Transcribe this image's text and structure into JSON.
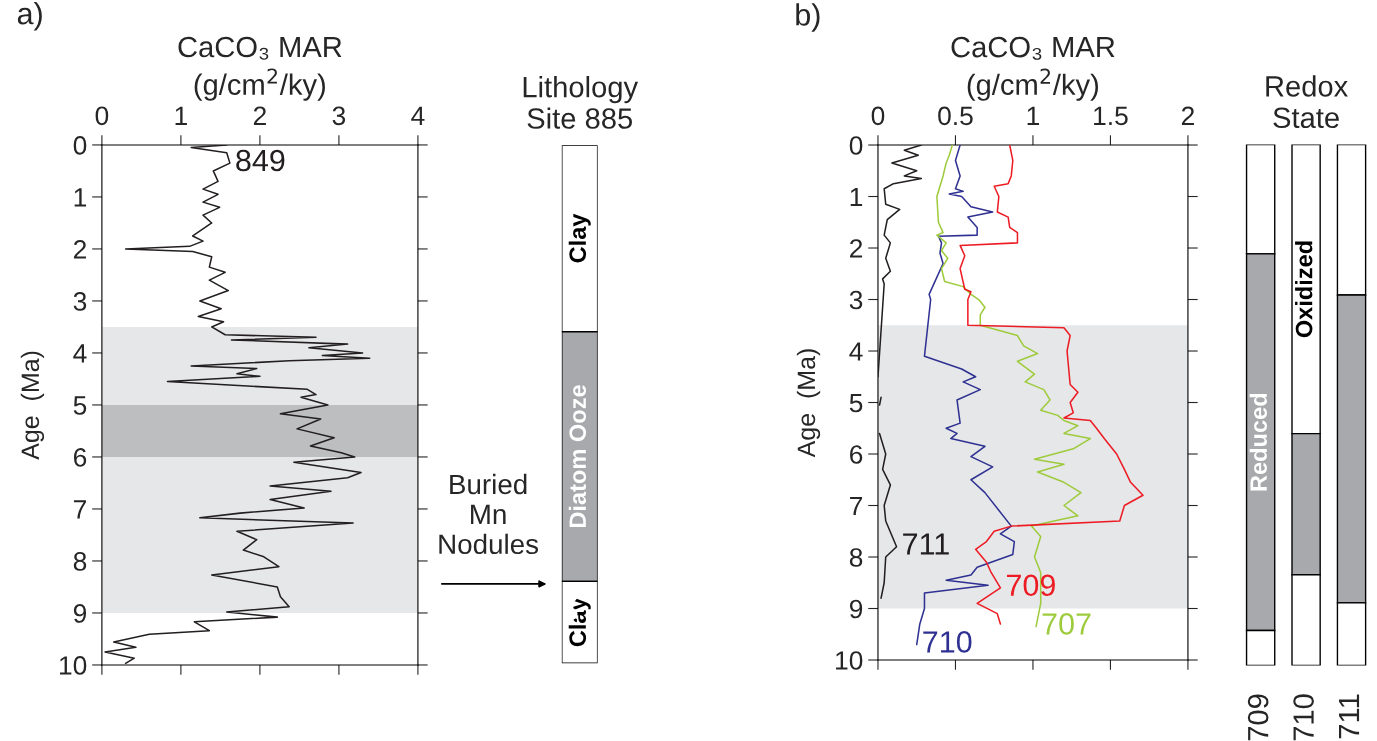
{
  "chart_data": [
    {
      "type": "line",
      "orientation": "horizontal",
      "title": "CaCO₃ MAR\n(g/cm$^{2}$/ky)",
      "ylabel": "Age  (Ma)",
      "annotations": [
        "a)"
      ],
      "xlim": [
        0,
        4
      ],
      "xticks": [
        0,
        1,
        2,
        3,
        4
      ],
      "ylim": [
        10,
        0
      ],
      "yticks": [
        0,
        1,
        2,
        3,
        4,
        5,
        6,
        7,
        8,
        9,
        10
      ],
      "bands": [
        {
          "axis": "y",
          "from": 3.5,
          "to": 9,
          "color": "#e6e7e8"
        },
        {
          "axis": "y",
          "from": 5,
          "to": 6,
          "color": "#bcbec0"
        }
      ],
      "series": [
        {
          "name": "849",
          "color": "#231f20",
          "x": [
            0,
            0.05,
            0.15,
            0.35,
            0.5,
            0.7,
            0.85,
            0.95,
            1.1,
            1.2,
            1.35,
            1.5,
            1.75,
            1.85,
            1.95,
            2.0,
            2.05,
            2.15,
            2.35,
            2.45,
            2.6,
            2.8,
            3.0,
            3.15,
            3.3,
            3.4,
            3.5,
            3.65,
            3.7,
            3.75,
            3.83,
            3.9,
            4.0,
            4.05,
            4.1,
            4.15,
            4.25,
            4.3,
            4.4,
            4.45,
            4.55,
            4.7,
            4.8,
            4.85,
            5.0,
            5.17,
            5.27,
            5.46,
            5.63,
            5.79,
            5.92,
            6.0,
            6.1,
            6.3,
            6.4,
            6.56,
            6.66,
            6.82,
            6.98,
            7.08,
            7.17,
            7.27,
            7.43,
            7.59,
            7.79,
            7.92,
            8.11,
            8.27,
            8.5,
            8.69,
            8.88,
            8.98,
            9.08,
            9.17,
            9.34,
            9.41,
            9.56,
            9.66,
            9.75,
            9.87,
            9.97
          ],
          "values": [
            1.58,
            1.13,
            1.58,
            1.62,
            1.41,
            1.47,
            1.28,
            1.47,
            1.28,
            1.49,
            1.28,
            1.39,
            1.15,
            1.28,
            1.11,
            0.3,
            1.15,
            1.39,
            1.36,
            1.56,
            1.36,
            1.6,
            1.24,
            1.51,
            1.22,
            1.54,
            1.39,
            1.56,
            2.71,
            1.64,
            3.11,
            2.62,
            3.3,
            2.79,
            3.39,
            2.37,
            1.13,
            1.96,
            1.71,
            2.0,
            0.83,
            2.6,
            2.71,
            2.52,
            2.86,
            2.26,
            2.77,
            2.47,
            2.94,
            2.64,
            3.03,
            3.2,
            2.43,
            3.28,
            3.11,
            2.13,
            2.9,
            2.13,
            2.56,
            1.75,
            1.24,
            3.18,
            1.71,
            1.96,
            1.79,
            2.05,
            2.24,
            1.39,
            2.22,
            2.26,
            2.37,
            1.58,
            2.22,
            1.17,
            1.36,
            0.6,
            0.15,
            0.43,
            0.04,
            0.41,
            0.3
          ]
        }
      ]
    },
    {
      "type": "bar",
      "stacked": true,
      "title": "Lithology\nSite 885",
      "categories": [
        null
      ],
      "ylim": [
        10,
        0
      ],
      "tick_labels": false,
      "annotations": [
        "Buried\nMn\nNodules"
      ],
      "series": [
        {
          "name": "Clay",
          "color": "#ffffff",
          "values": [
            3.6
          ]
        },
        {
          "name": "Diatom Ooze",
          "color": "#a7a9ac",
          "values": [
            4.82
          ]
        },
        {
          "name": "Clay",
          "color": "#ffffff",
          "values": [
            1.58
          ]
        }
      ]
    },
    {
      "type": "line",
      "orientation": "horizontal",
      "title": "CaCO₃ MAR\n(g/cm$^{2}$/ky)",
      "ylabel": "Age  (Ma)",
      "annotations": [
        "b)"
      ],
      "xlim": [
        0,
        2
      ],
      "xticks": [
        0,
        0.5,
        1,
        1.5,
        2
      ],
      "ylim": [
        10,
        0
      ],
      "yticks": [
        0,
        1,
        2,
        3,
        4,
        5,
        6,
        7,
        8,
        9,
        10
      ],
      "bands": [
        {
          "axis": "y",
          "from": 3.5,
          "to": 9,
          "color": "#e6e7e8"
        }
      ],
      "series": [
        {
          "name": "711",
          "color": "#231f20",
          "x": [
            0,
            0.1,
            0.2,
            0.35,
            0.5,
            0.6,
            0.65,
            0.75,
            0.85,
            1.15,
            1.25,
            1.45,
            1.75,
            1.9,
            2.2,
            2.45,
            2.6,
            2.7,
            4.5,
            4.7,
            4.9,
            5.05,
            5.3,
            5.6,
            6.0,
            6.3,
            6.6,
            7.0,
            7.3,
            7.8,
            8.0,
            8.5,
            8.8
          ],
          "values": [
            0.28,
            0.17,
            0.26,
            0.09,
            0.25,
            0.17,
            0.28,
            0.1,
            0.04,
            0.05,
            0.14,
            0.06,
            0.04,
            0.08,
            0.05,
            0.08,
            0.03,
            0.04,
            0.0,
            null,
            0.02,
            0.01,
            null,
            0.01,
            0.05,
            0.03,
            0.08,
            0.04,
            0.05,
            0.12,
            0.05,
            0.04,
            0.02
          ]
        },
        {
          "name": "710",
          "color": "#2e3192",
          "x": [
            0,
            0.3,
            0.6,
            0.85,
            0.9,
            0.95,
            1.0,
            1.2,
            1.3,
            1.4,
            1.6,
            1.75,
            1.77,
            1.9,
            2.1,
            2.3,
            2.7,
            2.9,
            3.0,
            4.1,
            4.35,
            4.5,
            4.6,
            4.75,
            4.95,
            5.4,
            5.5,
            5.6,
            5.7,
            5.85,
            6.05,
            6.25,
            6.5,
            6.75,
            7.4,
            7.55,
            7.7,
            7.95,
            8.2,
            8.35,
            8.45,
            8.55,
            8.7,
            9.0,
            9.3,
            9.7
          ],
          "values": [
            0.53,
            0.5,
            0.53,
            0.5,
            0.55,
            0.46,
            0.54,
            0.6,
            0.74,
            0.58,
            0.64,
            0.64,
            0.39,
            0.41,
            0.4,
            0.42,
            0.36,
            0.33,
            0.34,
            0.3,
            0.54,
            0.63,
            0.55,
            0.66,
            0.51,
            0.53,
            0.44,
            0.51,
            0.47,
            0.69,
            0.6,
            0.74,
            0.6,
            0.69,
            0.86,
            0.79,
            0.88,
            0.87,
            0.64,
            0.6,
            0.44,
            0.71,
            0.3,
            0.3,
            0.27,
            0.25
          ]
        },
        {
          "name": "707",
          "color": "#9ecb3c",
          "x": [
            0,
            0.2,
            0.35,
            0.6,
            1.0,
            1.5,
            1.7,
            1.75,
            1.9,
            2.05,
            2.2,
            2.4,
            2.65,
            2.75,
            2.9,
            3.0,
            3.15,
            3.3,
            3.5,
            3.7,
            3.9,
            4.05,
            4.2,
            4.45,
            4.6,
            4.75,
            4.95,
            5.15,
            5.25,
            5.35,
            5.45,
            5.6,
            5.7,
            5.9,
            6.1,
            6.2,
            6.35,
            6.55,
            6.75,
            7.0,
            7.2,
            7.4,
            7.6,
            8.0,
            8.3,
            8.9,
            9.35
          ],
          "values": [
            0.48,
            0.46,
            0.44,
            0.42,
            0.38,
            0.39,
            0.42,
            0.38,
            0.44,
            0.41,
            0.45,
            0.41,
            0.43,
            0.55,
            0.6,
            0.65,
            0.69,
            0.66,
            0.66,
            0.9,
            0.94,
            1.03,
            0.9,
            1.01,
            0.95,
            1.07,
            1.11,
            1.05,
            1.16,
            1.2,
            1.29,
            1.2,
            1.37,
            1.26,
            1.01,
            1.2,
            1.03,
            1.2,
            1.31,
            1.2,
            1.29,
            0.99,
            1.05,
            1.01,
            1.05,
            1.05,
            1.02
          ]
        },
        {
          "name": "709",
          "color": "#ed1c24",
          "x": [
            0,
            0.3,
            0.6,
            0.75,
            0.8,
            1.0,
            1.3,
            1.4,
            1.6,
            1.7,
            1.9,
            1.95,
            2.15,
            2.4,
            2.8,
            2.85,
            3.0,
            3.5,
            3.55,
            3.7,
            4.0,
            4.65,
            4.8,
            5.0,
            5.2,
            5.3,
            5.35,
            5.5,
            5.7,
            6.0,
            6.3,
            6.55,
            6.8,
            7.0,
            7.3,
            7.4,
            7.5,
            7.7,
            7.85,
            8.1,
            8.3,
            8.6,
            8.9,
            9.1,
            9.3
          ],
          "values": [
            0.85,
            0.87,
            0.86,
            0.84,
            0.75,
            0.78,
            0.77,
            0.84,
            0.85,
            0.9,
            0.9,
            0.53,
            0.56,
            0.53,
            0.56,
            0.6,
            0.58,
            0.58,
            1.2,
            1.24,
            1.22,
            1.24,
            1.29,
            1.24,
            1.26,
            1.2,
            1.37,
            1.41,
            1.46,
            1.54,
            1.59,
            1.63,
            1.71,
            1.59,
            1.56,
            0.86,
            0.75,
            0.7,
            0.63,
            0.7,
            0.73,
            0.79,
            0.64,
            0.77,
            0.79
          ]
        }
      ]
    },
    {
      "type": "bar",
      "stacked": true,
      "title": "Redox\nState",
      "categories": [
        "709",
        "710",
        "711"
      ],
      "ylim": [
        10,
        0
      ],
      "tick_labels": "x",
      "series": [
        {
          "name": "Oxidized",
          "color": "#ffffff",
          "values": [
            2.1,
            5.55,
            2.89
          ]
        },
        {
          "name": "Reduced",
          "color": "#a7a9ac",
          "values": [
            7.23,
            2.71,
            5.91
          ]
        },
        {
          "color": "#ffffff",
          "values": [
            0.67,
            1.74,
            1.2
          ]
        }
      ]
    }
  ]
}
